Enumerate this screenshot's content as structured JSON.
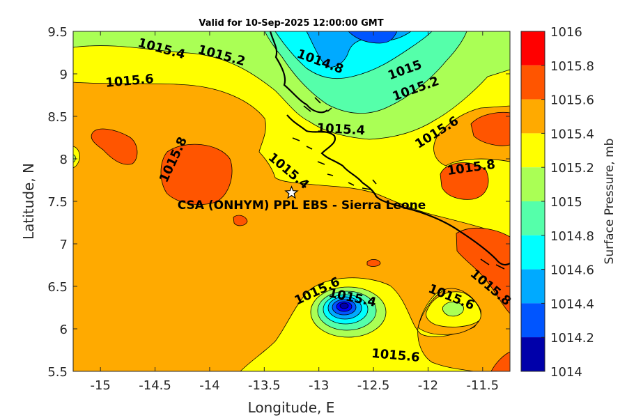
{
  "title": "Valid for 10-Sep-2025 12:00:00 GMT",
  "x_axis": {
    "label": "Longitude, E",
    "ticks": [
      "-15",
      "-14.5",
      "-14",
      "-13.5",
      "-13",
      "-12.5",
      "-12",
      "-11.5"
    ]
  },
  "y_axis": {
    "label": "Latitude, N",
    "ticks": [
      "9.5",
      "9",
      "8.5",
      "8",
      "7.5",
      "7",
      "6.5",
      "6",
      "5.5"
    ]
  },
  "colorbar": {
    "label": "Surface Pressure, mb",
    "levels": [
      {
        "value": "1016",
        "color": "#ff0000"
      },
      {
        "value": "1015.8",
        "color": "#ff5500"
      },
      {
        "value": "1015.6",
        "color": "#ffaa00"
      },
      {
        "value": "1015.4",
        "color": "#ffff00"
      },
      {
        "value": "1015.2",
        "color": "#aaff55"
      },
      {
        "value": "1015",
        "color": "#55ffaa"
      },
      {
        "value": "1014.8",
        "color": "#00ffff"
      },
      {
        "value": "1014.6",
        "color": "#00aaff"
      },
      {
        "value": "1014.4",
        "color": "#0055ff"
      },
      {
        "value": "1014.2",
        "color": "#0000ff"
      },
      {
        "value": "1014",
        "color": "#0000aa"
      }
    ]
  },
  "site": {
    "name": "CSA (ONHYM) PPL EBS  - Sierra Leone",
    "lon": -13.25,
    "lat": 7.6,
    "marker": "star-icon"
  },
  "contour_labels": [
    {
      "text": "1015.4",
      "lon": -14.45,
      "lat": 9.25,
      "rot": 15
    },
    {
      "text": "1015.2",
      "lon": -13.9,
      "lat": 9.17,
      "rot": 15
    },
    {
      "text": "1014.8",
      "lon": -13.0,
      "lat": 9.1,
      "rot": 20
    },
    {
      "text": "1015",
      "lon": -12.2,
      "lat": 9.0,
      "rot": -20
    },
    {
      "text": "1015.2",
      "lon": -12.1,
      "lat": 8.78,
      "rot": -20
    },
    {
      "text": "1015.6",
      "lon": -14.73,
      "lat": 8.87,
      "rot": -5
    },
    {
      "text": "1015.4",
      "lon": -12.8,
      "lat": 8.3,
      "rot": 3
    },
    {
      "text": "1015.6",
      "lon": -11.9,
      "lat": 8.27,
      "rot": -32
    },
    {
      "text": "1015.8",
      "lon": -14.3,
      "lat": 7.97,
      "rot": -65
    },
    {
      "text": "1015.8",
      "lon": -11.6,
      "lat": 7.85,
      "rot": -8
    },
    {
      "text": "1015.4",
      "lon": -13.3,
      "lat": 7.82,
      "rot": 40
    },
    {
      "text": "1015.6",
      "lon": -13.0,
      "lat": 6.4,
      "rot": -25
    },
    {
      "text": "1015.4",
      "lon": -12.7,
      "lat": 6.32,
      "rot": 12
    },
    {
      "text": "1015.6",
      "lon": -11.8,
      "lat": 6.33,
      "rot": 22
    },
    {
      "text": "1015.8",
      "lon": -11.45,
      "lat": 6.45,
      "rot": 40
    },
    {
      "text": "1015.6",
      "lon": -12.3,
      "lat": 5.64,
      "rot": 5
    }
  ]
}
